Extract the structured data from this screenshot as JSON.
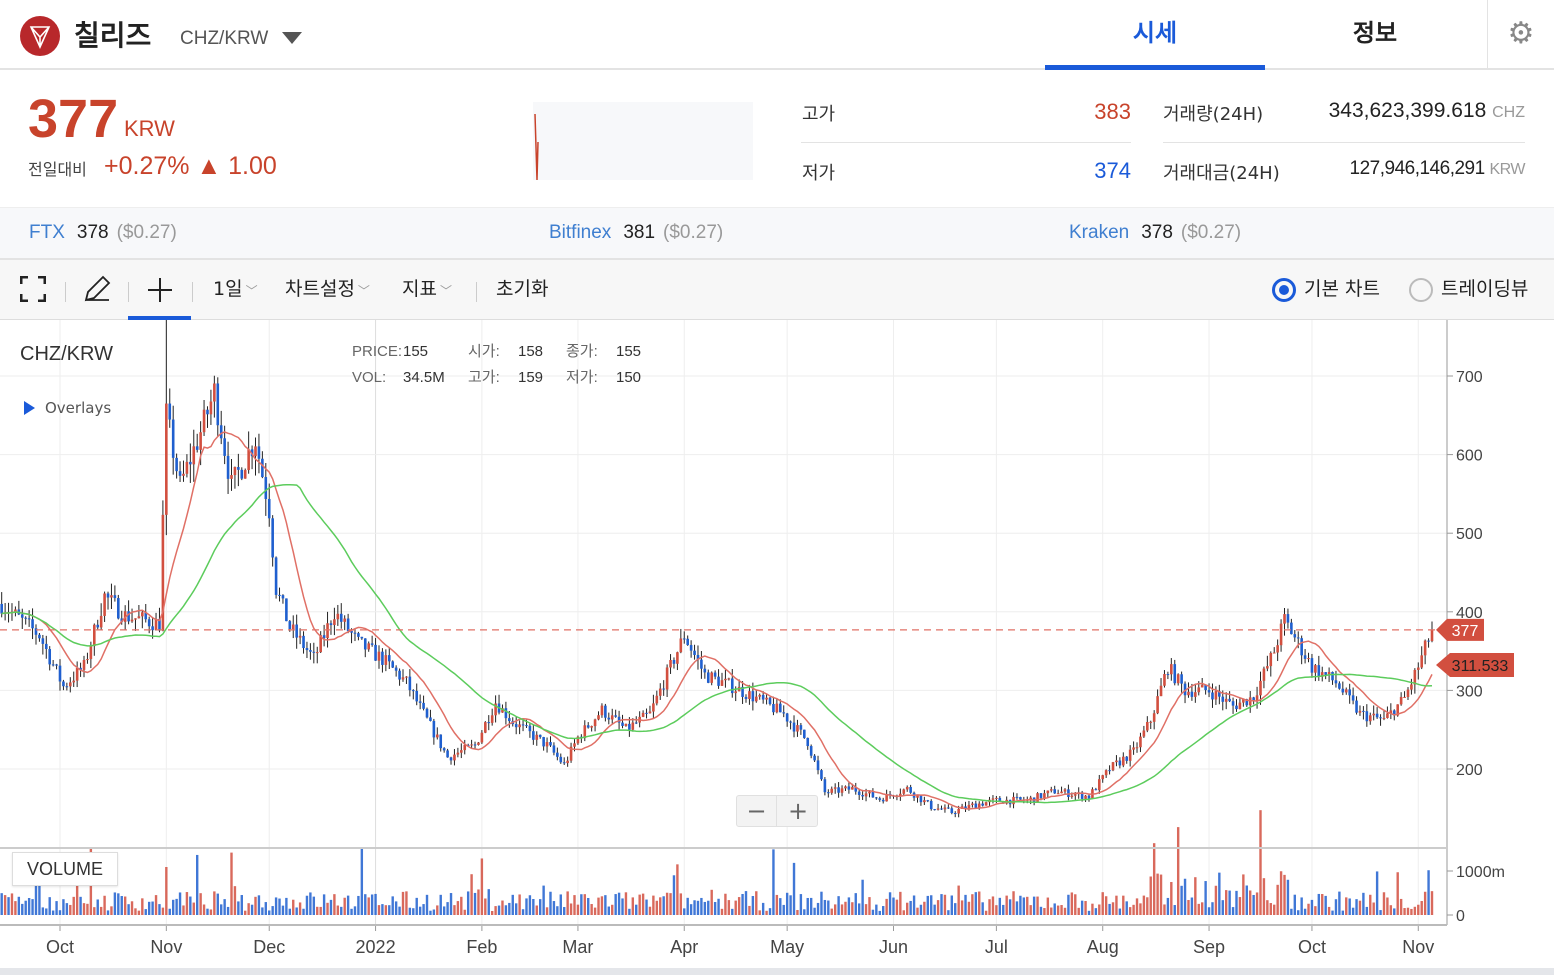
{
  "header": {
    "coin_name": "칠리즈",
    "pair": "CHZ/KRW",
    "tabs": [
      "시세",
      "정보"
    ],
    "active_tab": "시세"
  },
  "ticker": {
    "price": "377",
    "unit": "KRW",
    "change_label": "전일대비",
    "change_pct": "+0.27%",
    "change_abs": "▲ 1.00",
    "high_label": "고가",
    "high": "383",
    "low_label": "저가",
    "low": "374",
    "volume_label": "거래량(24H)",
    "volume": "343,623,399.618",
    "volume_unit": "CHZ",
    "amount_label": "거래대금(24H)",
    "amount": "127,946,146,291",
    "amount_unit": "KRW"
  },
  "exchanges": [
    {
      "name": "FTX",
      "price": "378",
      "usd": "($0.27)"
    },
    {
      "name": "Bitfinex",
      "price": "381",
      "usd": "($0.27)"
    },
    {
      "name": "Kraken",
      "price": "378",
      "usd": "($0.27)"
    }
  ],
  "toolbar": {
    "interval": "1일",
    "chart_settings": "차트설정",
    "indicators": "지표",
    "reset": "초기화",
    "basic_chart": "기본 차트",
    "tradingview": "트레이딩뷰",
    "selected_chart": "기본 차트"
  },
  "legend": {
    "symbol": "CHZ/KRW",
    "overlays": "Overlays",
    "price_label": "PRICE:",
    "price": "155",
    "open_label": "시가:",
    "open": "158",
    "close_label": "종가:",
    "close": "155",
    "vol_label": "VOL:",
    "vol": "34.5M",
    "high_label": "고가:",
    "high": "159",
    "low_label": "저가:",
    "low": "150"
  },
  "volume_label": "VOLUME",
  "colors": {
    "up": "#d24f3f",
    "down": "#1f5fcf",
    "ma_short": "#e07066",
    "ma_long": "#5ccc5c",
    "accent": "#1a5ad9"
  },
  "chart_data": {
    "type": "candlestick",
    "x_tick_labels": [
      "Oct",
      "Nov",
      "Dec",
      "2022",
      "Feb",
      "Mar",
      "Apr",
      "May",
      "Jun",
      "Jul",
      "Aug",
      "Sep",
      "Oct",
      "Nov"
    ],
    "y_tick_labels": [
      "200",
      "300",
      "400",
      "500",
      "600",
      "700"
    ],
    "volume_tick_labels": [
      "0",
      "1000m"
    ],
    "ylim": [
      130,
      760
    ],
    "last_price": "377",
    "ma_value": "311.533",
    "close_path": [
      [
        "2021-09-14",
        410
      ],
      [
        "2021-09-25",
        370
      ],
      [
        "2021-10-02",
        305
      ],
      [
        "2021-10-08",
        330
      ],
      [
        "2021-10-14",
        420
      ],
      [
        "2021-10-20",
        395
      ],
      [
        "2021-10-30",
        385
      ],
      [
        "2021-11-01",
        650
      ],
      [
        "2021-11-05",
        560
      ],
      [
        "2021-11-12",
        640
      ],
      [
        "2021-11-15",
        680
      ],
      [
        "2021-11-20",
        560
      ],
      [
        "2021-11-27",
        620
      ],
      [
        "2021-12-01",
        530
      ],
      [
        "2021-12-03",
        430
      ],
      [
        "2021-12-07",
        380
      ],
      [
        "2021-12-14",
        340
      ],
      [
        "2021-12-20",
        400
      ],
      [
        "2021-12-27",
        360
      ],
      [
        "2022-01-03",
        340
      ],
      [
        "2022-01-10",
        310
      ],
      [
        "2022-01-15",
        270
      ],
      [
        "2022-01-22",
        215
      ],
      [
        "2022-01-30",
        230
      ],
      [
        "2022-02-05",
        285
      ],
      [
        "2022-02-10",
        260
      ],
      [
        "2022-02-20",
        230
      ],
      [
        "2022-02-25",
        205
      ],
      [
        "2022-03-01",
        240
      ],
      [
        "2022-03-08",
        275
      ],
      [
        "2022-03-15",
        250
      ],
      [
        "2022-03-22",
        270
      ],
      [
        "2022-03-28",
        330
      ],
      [
        "2022-04-01",
        370
      ],
      [
        "2022-04-07",
        320
      ],
      [
        "2022-04-15",
        305
      ],
      [
        "2022-04-22",
        290
      ],
      [
        "2022-04-30",
        270
      ],
      [
        "2022-05-07",
        235
      ],
      [
        "2022-05-12",
        170
      ],
      [
        "2022-05-20",
        175
      ],
      [
        "2022-05-28",
        162
      ],
      [
        "2022-06-05",
        175
      ],
      [
        "2022-06-12",
        152
      ],
      [
        "2022-06-18",
        145
      ],
      [
        "2022-06-25",
        155
      ],
      [
        "2022-07-01",
        160
      ],
      [
        "2022-07-10",
        160
      ],
      [
        "2022-07-18",
        172
      ],
      [
        "2022-07-28",
        165
      ],
      [
        "2022-08-03",
        200
      ],
      [
        "2022-08-10",
        222
      ],
      [
        "2022-08-15",
        262
      ],
      [
        "2022-08-20",
        330
      ],
      [
        "2022-08-25",
        300
      ],
      [
        "2022-09-01",
        300
      ],
      [
        "2022-09-08",
        280
      ],
      [
        "2022-09-14",
        292
      ],
      [
        "2022-09-20",
        350
      ],
      [
        "2022-09-23",
        390
      ],
      [
        "2022-10-01",
        330
      ],
      [
        "2022-10-08",
        310
      ],
      [
        "2022-10-15",
        270
      ],
      [
        "2022-10-22",
        262
      ],
      [
        "2022-10-28",
        290
      ],
      [
        "2022-11-01",
        330
      ],
      [
        "2022-11-05",
        377
      ]
    ]
  }
}
